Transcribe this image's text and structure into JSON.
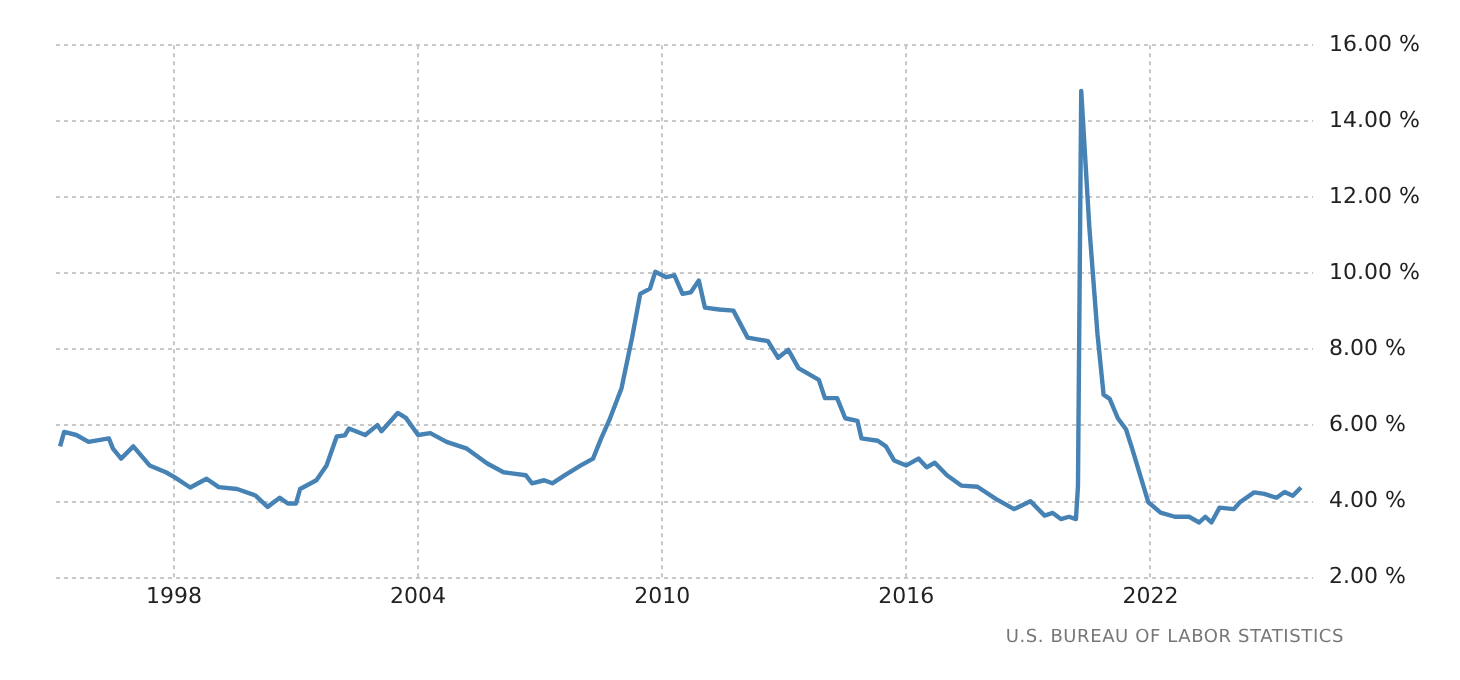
{
  "chart_data": {
    "type": "line",
    "x": [
      1995.2,
      1995.3,
      1995.6,
      1995.9,
      1996.4,
      1996.5,
      1996.7,
      1997.0,
      1997.4,
      1997.8,
      1998.0,
      1998.4,
      1998.8,
      1999.1,
      1999.55,
      2000.0,
      2000.3,
      2000.6,
      2000.8,
      2001.0,
      2001.1,
      2001.5,
      2001.75,
      2002.0,
      2002.2,
      2002.3,
      2002.7,
      2003.0,
      2003.1,
      2003.5,
      2003.7,
      2004.0,
      2004.3,
      2004.7,
      2005.2,
      2005.7,
      2006.1,
      2006.65,
      2006.8,
      2007.1,
      2007.3,
      2007.6,
      2008.0,
      2008.3,
      2008.5,
      2008.7,
      2009.0,
      2009.26,
      2009.46,
      2009.7,
      2009.83,
      2010.1,
      2010.3,
      2010.5,
      2010.7,
      2010.9,
      2011.05,
      2011.4,
      2011.75,
      2012.1,
      2012.6,
      2012.85,
      2013.1,
      2013.35,
      2013.85,
      2014.0,
      2014.3,
      2014.5,
      2014.8,
      2014.9,
      2015.3,
      2015.5,
      2015.7,
      2016.0,
      2016.3,
      2016.5,
      2016.7,
      2017.0,
      2017.35,
      2017.75,
      2018.2,
      2018.65,
      2019.05,
      2019.4,
      2019.6,
      2019.8,
      2020.0,
      2020.17,
      2020.22,
      2020.3,
      2020.5,
      2020.7,
      2020.85,
      2021.0,
      2021.2,
      2021.4,
      2021.55,
      2021.75,
      2021.95,
      2022.25,
      2022.6,
      2022.95,
      2023.2,
      2023.35,
      2023.5,
      2023.7,
      2024.05,
      2024.2,
      2024.55,
      2024.8,
      2025.1,
      2025.3,
      2025.5,
      2025.7
    ],
    "series": [
      {
        "color": "#4682b4",
        "values": [
          5.45,
          5.83,
          5.75,
          5.57,
          5.66,
          5.39,
          5.13,
          5.45,
          4.95,
          4.77,
          4.65,
          4.37,
          4.6,
          4.38,
          4.33,
          4.16,
          3.86,
          4.1,
          3.95,
          3.95,
          4.33,
          4.56,
          4.95,
          5.71,
          5.74,
          5.92,
          5.75,
          6.01,
          5.85,
          6.33,
          6.2,
          5.75,
          5.8,
          5.57,
          5.39,
          5.0,
          4.77,
          4.69,
          4.48,
          4.56,
          4.48,
          4.69,
          4.95,
          5.13,
          5.66,
          6.14,
          6.98,
          8.31,
          9.46,
          9.6,
          10.04,
          9.9,
          9.95,
          9.46,
          9.5,
          9.81,
          9.1,
          9.05,
          9.02,
          8.31,
          8.22,
          7.78,
          7.99,
          7.51,
          7.2,
          6.72,
          6.72,
          6.19,
          6.12,
          5.66,
          5.6,
          5.45,
          5.08,
          4.95,
          5.13,
          4.9,
          5.02,
          4.69,
          4.42,
          4.39,
          4.07,
          3.8,
          4.01,
          3.63,
          3.7,
          3.54,
          3.6,
          3.54,
          4.4,
          14.8,
          11.2,
          8.4,
          6.81,
          6.7,
          6.19,
          5.9,
          5.4,
          4.69,
          3.98,
          3.71,
          3.6,
          3.6,
          3.45,
          3.6,
          3.45,
          3.84,
          3.8,
          3.98,
          4.24,
          4.2,
          4.1,
          4.25,
          4.15,
          4.37
        ]
      }
    ],
    "xlim": [
      1995.1,
      2026
    ],
    "xticks": [
      1998,
      2004,
      2010,
      2016,
      2022
    ],
    "ylim": [
      2,
      16
    ],
    "yticks": [
      {
        "value": 2,
        "label": "2.00 %"
      },
      {
        "value": 4,
        "label": "4.00 %"
      },
      {
        "value": 6,
        "label": "6.00 %"
      },
      {
        "value": 8,
        "label": "8.00 %"
      },
      {
        "value": 10,
        "label": "10.00 %"
      },
      {
        "value": 12,
        "label": "12.00 %"
      },
      {
        "value": 14,
        "label": "14.00 %"
      },
      {
        "value": 16,
        "label": "16.00 %"
      }
    ],
    "grid": true,
    "marker": "none",
    "annotations": [
      "U.S. BUREAU OF LABOR STATISTICS"
    ]
  }
}
